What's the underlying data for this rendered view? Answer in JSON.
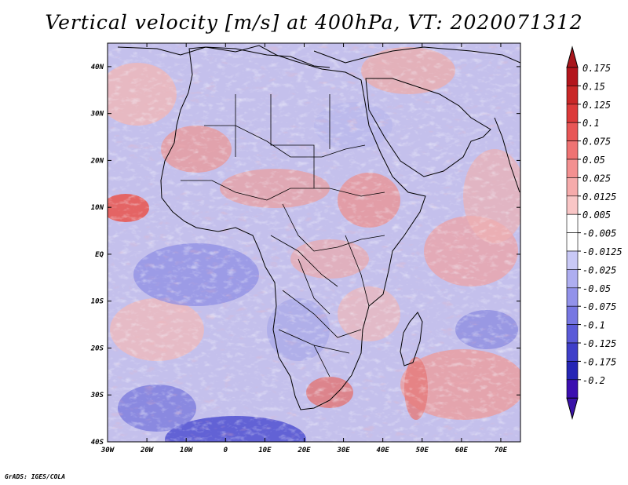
{
  "title": "Vertical velocity [m/s] at 400hPa, VT: 2020071312",
  "credit": "GrADS: IGES/COLA",
  "map": {
    "lat_labels": [
      "40N",
      "30N",
      "20N",
      "10N",
      "EQ",
      "10S",
      "20S",
      "30S",
      "40S"
    ],
    "lon_labels": [
      "30W",
      "20W",
      "10W",
      "0",
      "10E",
      "20E",
      "30E",
      "40E",
      "50E",
      "60E",
      "70E"
    ],
    "lon_range": [
      -30,
      75
    ],
    "lat_range": [
      -40,
      45
    ]
  },
  "colorbar": {
    "labels": [
      "0.175",
      "0.15",
      "0.125",
      "0.1",
      "0.075",
      "0.05",
      "0.025",
      "0.0125",
      "0.005",
      "-0.005",
      "-0.0125",
      "-0.025",
      "-0.05",
      "-0.075",
      "-0.1",
      "-0.125",
      "-0.175",
      "-0.2"
    ],
    "colors": [
      "#b3151c",
      "#c92727",
      "#dc3a3a",
      "#e85656",
      "#ef7373",
      "#f39090",
      "#f6abab",
      "#f9c6c6",
      "#ffffff",
      "#ffffff",
      "#c9c9f6",
      "#aeaef0",
      "#9292ea",
      "#7777e2",
      "#5b5bd8",
      "#3f3fc9",
      "#2626b5",
      "#3b0fb0"
    ],
    "top_arrow_color": "#a8161c",
    "bottom_arrow_color": "#3a12a8"
  }
}
